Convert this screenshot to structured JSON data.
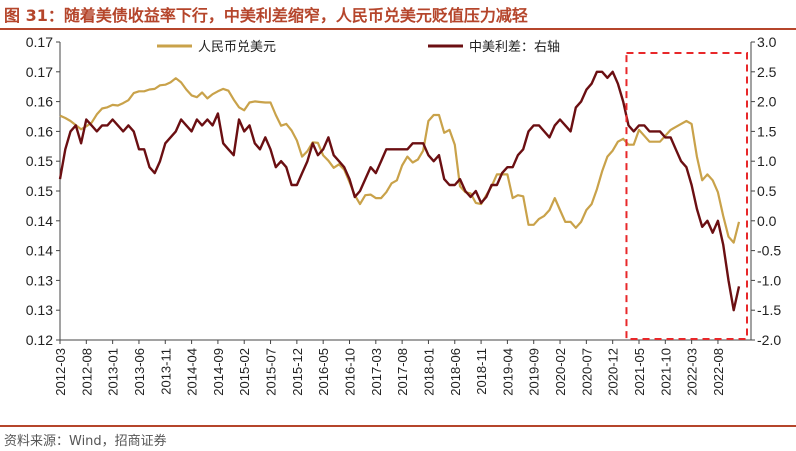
{
  "header": {
    "title": "图 31：随着美债收益率下行，中美利差缩窄，人民币兑美元贬值压力减轻"
  },
  "footer": {
    "source": "资料来源：Wind，招商证券"
  },
  "colors": {
    "cny": "#c9a24a",
    "spread": "#6b0f12",
    "highlight": "#e8282a",
    "title": "#b5452b"
  },
  "chart_data": {
    "type": "line",
    "xlim": [
      "2012-03",
      "2022-12"
    ],
    "x_ticks": [
      "2012-03",
      "2012-08",
      "2013-01",
      "2013-06",
      "2013-11",
      "2014-04",
      "2014-09",
      "2015-02",
      "2015-07",
      "2015-12",
      "2016-05",
      "2016-10",
      "2017-03",
      "2017-08",
      "2018-01",
      "2018-06",
      "2018-11",
      "2019-04",
      "2019-09",
      "2020-02",
      "2020-07",
      "2020-12",
      "2021-05",
      "2021-10",
      "2022-03",
      "2022-08"
    ],
    "y_left": {
      "ticks": [
        "0.17",
        "0.17",
        "0.16",
        "0.16",
        "0.15",
        "0.15",
        "0.14",
        "0.14",
        "0.13",
        "0.13",
        "0.12"
      ]
    },
    "y_right": {
      "ylim": [
        -2.0,
        3.0
      ],
      "ticks": [
        "3.0",
        "2.5",
        "2.0",
        "1.5",
        "1.0",
        "0.5",
        "0.0",
        "-0.5",
        "-1.0",
        "-1.5",
        "-2.0"
      ]
    },
    "highlight_box": {
      "x_start": "2021-03",
      "x_end": "2022-12",
      "style": "dashed"
    },
    "series": [
      {
        "name": "人民币兑美元",
        "axis": "left",
        "points": [
          [
            "2012-03",
            0.1589
          ],
          [
            "2012-04",
            0.1585
          ],
          [
            "2012-05",
            0.158
          ],
          [
            "2012-06",
            0.1573
          ],
          [
            "2012-07",
            0.1566
          ],
          [
            "2012-08",
            0.1571
          ],
          [
            "2012-09",
            0.1577
          ],
          [
            "2012-10",
            0.1591
          ],
          [
            "2012-11",
            0.1601
          ],
          [
            "2012-12",
            0.1603
          ],
          [
            "2013-01",
            0.1607
          ],
          [
            "2013-02",
            0.1606
          ],
          [
            "2013-03",
            0.161
          ],
          [
            "2013-04",
            0.1615
          ],
          [
            "2013-05",
            0.1627
          ],
          [
            "2013-06",
            0.163
          ],
          [
            "2013-07",
            0.163
          ],
          [
            "2013-08",
            0.1633
          ],
          [
            "2013-09",
            0.1634
          ],
          [
            "2013-10",
            0.164
          ],
          [
            "2013-11",
            0.1641
          ],
          [
            "2013-12",
            0.1645
          ],
          [
            "2014-01",
            0.1652
          ],
          [
            "2014-02",
            0.1645
          ],
          [
            "2014-03",
            0.1633
          ],
          [
            "2014-04",
            0.1623
          ],
          [
            "2014-05",
            0.162
          ],
          [
            "2014-06",
            0.1628
          ],
          [
            "2014-07",
            0.1618
          ],
          [
            "2014-08",
            0.1625
          ],
          [
            "2014-09",
            0.163
          ],
          [
            "2014-10",
            0.1634
          ],
          [
            "2014-11",
            0.1631
          ],
          [
            "2014-12",
            0.1616
          ],
          [
            "2015-01",
            0.1603
          ],
          [
            "2015-02",
            0.1598
          ],
          [
            "2015-03",
            0.1611
          ],
          [
            "2015-04",
            0.1613
          ],
          [
            "2015-05",
            0.1612
          ],
          [
            "2015-06",
            0.1611
          ],
          [
            "2015-07",
            0.1611
          ],
          [
            "2015-08",
            0.159
          ],
          [
            "2015-09",
            0.1572
          ],
          [
            "2015-10",
            0.1575
          ],
          [
            "2015-11",
            0.1564
          ],
          [
            "2015-12",
            0.1547
          ],
          [
            "2016-01",
            0.152
          ],
          [
            "2016-02",
            0.1529
          ],
          [
            "2016-03",
            0.1544
          ],
          [
            "2016-04",
            0.1543
          ],
          [
            "2016-05",
            0.1522
          ],
          [
            "2016-06",
            0.1513
          ],
          [
            "2016-07",
            0.1501
          ],
          [
            "2016-08",
            0.1507
          ],
          [
            "2016-09",
            0.1498
          ],
          [
            "2016-10",
            0.1477
          ],
          [
            "2016-11",
            0.1455
          ],
          [
            "2016-12",
            0.144
          ],
          [
            "2017-01",
            0.1455
          ],
          [
            "2017-02",
            0.1456
          ],
          [
            "2017-03",
            0.145
          ],
          [
            "2017-04",
            0.145
          ],
          [
            "2017-05",
            0.146
          ],
          [
            "2017-06",
            0.1475
          ],
          [
            "2017-07",
            0.148
          ],
          [
            "2017-08",
            0.1505
          ],
          [
            "2017-09",
            0.152
          ],
          [
            "2017-10",
            0.151
          ],
          [
            "2017-11",
            0.1515
          ],
          [
            "2017-12",
            0.153
          ],
          [
            "2018-01",
            0.158
          ],
          [
            "2018-02",
            0.159
          ],
          [
            "2018-03",
            0.159
          ],
          [
            "2018-04",
            0.156
          ],
          [
            "2018-05",
            0.1565
          ],
          [
            "2018-06",
            0.154
          ],
          [
            "2018-07",
            0.147
          ],
          [
            "2018-08",
            0.146
          ],
          [
            "2018-09",
            0.1458
          ],
          [
            "2018-10",
            0.1442
          ],
          [
            "2018-11",
            0.144
          ],
          [
            "2018-12",
            0.1455
          ],
          [
            "2019-01",
            0.147
          ],
          [
            "2019-02",
            0.149
          ],
          [
            "2019-03",
            0.149
          ],
          [
            "2019-04",
            0.149
          ],
          [
            "2019-05",
            0.145
          ],
          [
            "2019-06",
            0.1455
          ],
          [
            "2019-07",
            0.1453
          ],
          [
            "2019-08",
            0.1405
          ],
          [
            "2019-09",
            0.1405
          ],
          [
            "2019-10",
            0.1415
          ],
          [
            "2019-11",
            0.142
          ],
          [
            "2019-12",
            0.143
          ],
          [
            "2020-01",
            0.145
          ],
          [
            "2020-02",
            0.143
          ],
          [
            "2020-03",
            0.141
          ],
          [
            "2020-04",
            0.141
          ],
          [
            "2020-05",
            0.14
          ],
          [
            "2020-06",
            0.141
          ],
          [
            "2020-07",
            0.143
          ],
          [
            "2020-08",
            0.144
          ],
          [
            "2020-09",
            0.1465
          ],
          [
            "2020-10",
            0.1495
          ],
          [
            "2020-11",
            0.152
          ],
          [
            "2020-12",
            0.153
          ],
          [
            "2021-01",
            0.1545
          ],
          [
            "2021-02",
            0.155
          ],
          [
            "2021-03",
            0.154
          ],
          [
            "2021-04",
            0.154
          ],
          [
            "2021-05",
            0.1565
          ],
          [
            "2021-06",
            0.1555
          ],
          [
            "2021-07",
            0.1545
          ],
          [
            "2021-08",
            0.1545
          ],
          [
            "2021-09",
            0.1545
          ],
          [
            "2021-10",
            0.1555
          ],
          [
            "2021-11",
            0.1565
          ],
          [
            "2021-12",
            0.157
          ],
          [
            "2022-01",
            0.1575
          ],
          [
            "2022-02",
            0.158
          ],
          [
            "2022-03",
            0.1575
          ],
          [
            "2022-04",
            0.152
          ],
          [
            "2022-05",
            0.148
          ],
          [
            "2022-06",
            0.149
          ],
          [
            "2022-07",
            0.148
          ],
          [
            "2022-08",
            0.146
          ],
          [
            "2022-09",
            0.142
          ],
          [
            "2022-10",
            0.1385
          ],
          [
            "2022-11",
            0.1375
          ],
          [
            "2022-12",
            0.141
          ]
        ]
      },
      {
        "name": "中美利差：右轴",
        "axis": "right",
        "points": [
          [
            "2012-03",
            0.7
          ],
          [
            "2012-04",
            1.2
          ],
          [
            "2012-05",
            1.5
          ],
          [
            "2012-06",
            1.6
          ],
          [
            "2012-07",
            1.3
          ],
          [
            "2012-08",
            1.7
          ],
          [
            "2012-09",
            1.6
          ],
          [
            "2012-10",
            1.5
          ],
          [
            "2012-11",
            1.6
          ],
          [
            "2012-12",
            1.6
          ],
          [
            "2013-01",
            1.7
          ],
          [
            "2013-02",
            1.6
          ],
          [
            "2013-03",
            1.5
          ],
          [
            "2013-04",
            1.6
          ],
          [
            "2013-05",
            1.5
          ],
          [
            "2013-06",
            1.2
          ],
          [
            "2013-07",
            1.2
          ],
          [
            "2013-08",
            0.9
          ],
          [
            "2013-09",
            0.8
          ],
          [
            "2013-10",
            1.0
          ],
          [
            "2013-11",
            1.3
          ],
          [
            "2013-12",
            1.4
          ],
          [
            "2014-01",
            1.5
          ],
          [
            "2014-02",
            1.7
          ],
          [
            "2014-03",
            1.6
          ],
          [
            "2014-04",
            1.5
          ],
          [
            "2014-05",
            1.7
          ],
          [
            "2014-06",
            1.6
          ],
          [
            "2014-07",
            1.7
          ],
          [
            "2014-08",
            1.6
          ],
          [
            "2014-09",
            1.8
          ],
          [
            "2014-10",
            1.3
          ],
          [
            "2014-11",
            1.2
          ],
          [
            "2014-12",
            1.1
          ],
          [
            "2015-01",
            1.7
          ],
          [
            "2015-02",
            1.5
          ],
          [
            "2015-03",
            1.6
          ],
          [
            "2015-04",
            1.3
          ],
          [
            "2015-05",
            1.2
          ],
          [
            "2015-06",
            1.4
          ],
          [
            "2015-07",
            1.2
          ],
          [
            "2015-08",
            0.9
          ],
          [
            "2015-09",
            1.0
          ],
          [
            "2015-10",
            0.9
          ],
          [
            "2015-11",
            0.6
          ],
          [
            "2015-12",
            0.6
          ],
          [
            "2016-01",
            0.8
          ],
          [
            "2016-02",
            1.0
          ],
          [
            "2016-03",
            1.3
          ],
          [
            "2016-04",
            1.1
          ],
          [
            "2016-05",
            1.2
          ],
          [
            "2016-06",
            1.4
          ],
          [
            "2016-07",
            1.1
          ],
          [
            "2016-08",
            1.0
          ],
          [
            "2016-09",
            0.9
          ],
          [
            "2016-10",
            0.7
          ],
          [
            "2016-11",
            0.4
          ],
          [
            "2016-12",
            0.5
          ],
          [
            "2017-01",
            0.7
          ],
          [
            "2017-02",
            0.9
          ],
          [
            "2017-03",
            0.8
          ],
          [
            "2017-04",
            1.0
          ],
          [
            "2017-05",
            1.2
          ],
          [
            "2017-06",
            1.2
          ],
          [
            "2017-07",
            1.2
          ],
          [
            "2017-08",
            1.2
          ],
          [
            "2017-09",
            1.2
          ],
          [
            "2017-10",
            1.3
          ],
          [
            "2017-11",
            1.3
          ],
          [
            "2017-12",
            1.3
          ],
          [
            "2018-01",
            1.1
          ],
          [
            "2018-02",
            1.0
          ],
          [
            "2018-03",
            1.1
          ],
          [
            "2018-04",
            0.7
          ],
          [
            "2018-05",
            0.6
          ],
          [
            "2018-06",
            0.6
          ],
          [
            "2018-07",
            0.7
          ],
          [
            "2018-08",
            0.5
          ],
          [
            "2018-09",
            0.4
          ],
          [
            "2018-10",
            0.5
          ],
          [
            "2018-11",
            0.3
          ],
          [
            "2018-12",
            0.4
          ],
          [
            "2019-01",
            0.6
          ],
          [
            "2019-02",
            0.6
          ],
          [
            "2019-03",
            0.8
          ],
          [
            "2019-04",
            0.9
          ],
          [
            "2019-05",
            0.9
          ],
          [
            "2019-06",
            1.1
          ],
          [
            "2019-07",
            1.2
          ],
          [
            "2019-08",
            1.5
          ],
          [
            "2019-09",
            1.6
          ],
          [
            "2019-10",
            1.6
          ],
          [
            "2019-11",
            1.5
          ],
          [
            "2019-12",
            1.4
          ],
          [
            "2020-01",
            1.6
          ],
          [
            "2020-02",
            1.7
          ],
          [
            "2020-03",
            1.6
          ],
          [
            "2020-04",
            1.5
          ],
          [
            "2020-05",
            1.9
          ],
          [
            "2020-06",
            2.0
          ],
          [
            "2020-07",
            2.2
          ],
          [
            "2020-08",
            2.3
          ],
          [
            "2020-09",
            2.5
          ],
          [
            "2020-10",
            2.5
          ],
          [
            "2020-11",
            2.4
          ],
          [
            "2020-12",
            2.5
          ],
          [
            "2021-01",
            2.3
          ],
          [
            "2021-02",
            2.0
          ],
          [
            "2021-03",
            1.6
          ],
          [
            "2021-04",
            1.5
          ],
          [
            "2021-05",
            1.6
          ],
          [
            "2021-06",
            1.6
          ],
          [
            "2021-07",
            1.5
          ],
          [
            "2021-08",
            1.5
          ],
          [
            "2021-09",
            1.5
          ],
          [
            "2021-10",
            1.4
          ],
          [
            "2021-11",
            1.4
          ],
          [
            "2021-12",
            1.2
          ],
          [
            "2022-01",
            1.0
          ],
          [
            "2022-02",
            0.9
          ],
          [
            "2022-03",
            0.6
          ],
          [
            "2022-04",
            0.2
          ],
          [
            "2022-05",
            -0.1
          ],
          [
            "2022-06",
            0.0
          ],
          [
            "2022-07",
            -0.2
          ],
          [
            "2022-08",
            0.0
          ],
          [
            "2022-09",
            -0.4
          ],
          [
            "2022-10",
            -1.0
          ],
          [
            "2022-11",
            -1.5
          ],
          [
            "2022-12",
            -1.1
          ]
        ]
      }
    ]
  }
}
